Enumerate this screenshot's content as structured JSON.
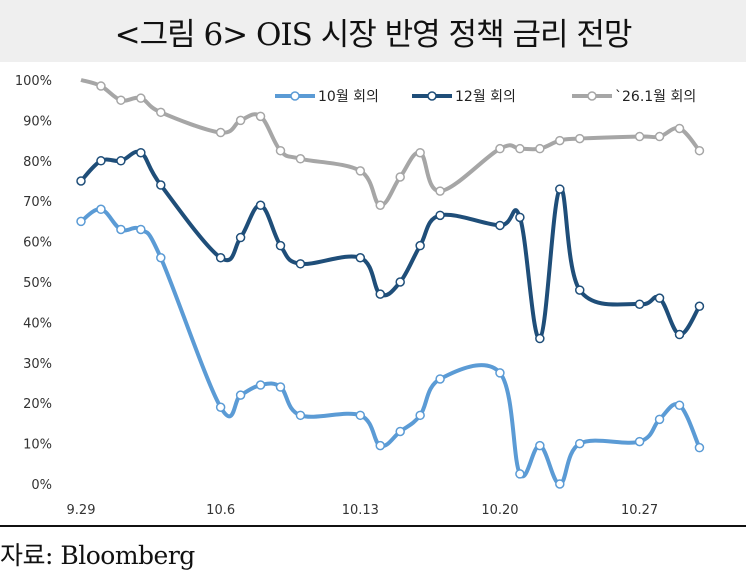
{
  "title": "<그림 6> OIS 시장 반영 정책 금리 전망",
  "source": "자료: Bloomberg",
  "chart_data": {
    "type": "line",
    "title": "<그림 6> OIS 시장 반영 정책 금리 전망",
    "xlabel": "",
    "ylabel": "",
    "ylim": [
      0,
      100
    ],
    "yticks": [
      "0%",
      "10%",
      "20%",
      "30%",
      "40%",
      "50%",
      "60%",
      "70%",
      "80%",
      "90%",
      "100%"
    ],
    "xtick_labels": [
      "9.29",
      "10.6",
      "10.13",
      "10.20",
      "10.27"
    ],
    "xtick_day_index": [
      0,
      7,
      14,
      21,
      28
    ],
    "x_day_index": [
      0,
      1,
      2,
      3,
      4,
      7,
      8,
      9,
      10,
      11,
      14,
      15,
      16,
      17,
      18,
      21,
      22,
      23,
      24,
      25,
      28,
      29,
      30,
      31
    ],
    "x": [
      "9.29",
      "9.30",
      "10.1",
      "10.2",
      "10.3",
      "10.6",
      "10.7",
      "10.8",
      "10.9",
      "10.10",
      "10.13",
      "10.14",
      "10.15",
      "10.16",
      "10.17",
      "10.20",
      "10.21",
      "10.22",
      "10.23",
      "10.24",
      "10.27",
      "10.28",
      "10.29",
      "10.30"
    ],
    "legend_position": "top-right",
    "grid": false,
    "series": [
      {
        "name": "10월 회의",
        "color": "#5b9bd5",
        "values": [
          65,
          68,
          63,
          63,
          56,
          19,
          22,
          24.5,
          24,
          17,
          17,
          9.5,
          13,
          17,
          26,
          27.5,
          2.5,
          9.5,
          0,
          10,
          10.5,
          16,
          19.5,
          9
        ]
      },
      {
        "name": "12월 회의",
        "color": "#1f4e79",
        "values": [
          75,
          80,
          80,
          82,
          74,
          56,
          61,
          69,
          59,
          54.5,
          56,
          47,
          50,
          59,
          66.5,
          64,
          66,
          36,
          73,
          48,
          44.5,
          46,
          37,
          44
        ]
      },
      {
        "name": "`26.1월 회의",
        "color": "#a6a6a6",
        "values": [
          100,
          98.5,
          95,
          95.5,
          92,
          87,
          90,
          91,
          82.5,
          80.5,
          77.5,
          69,
          76,
          82,
          72.5,
          83,
          83,
          83,
          85,
          85.5,
          86,
          86,
          88,
          82.5
        ]
      }
    ]
  }
}
